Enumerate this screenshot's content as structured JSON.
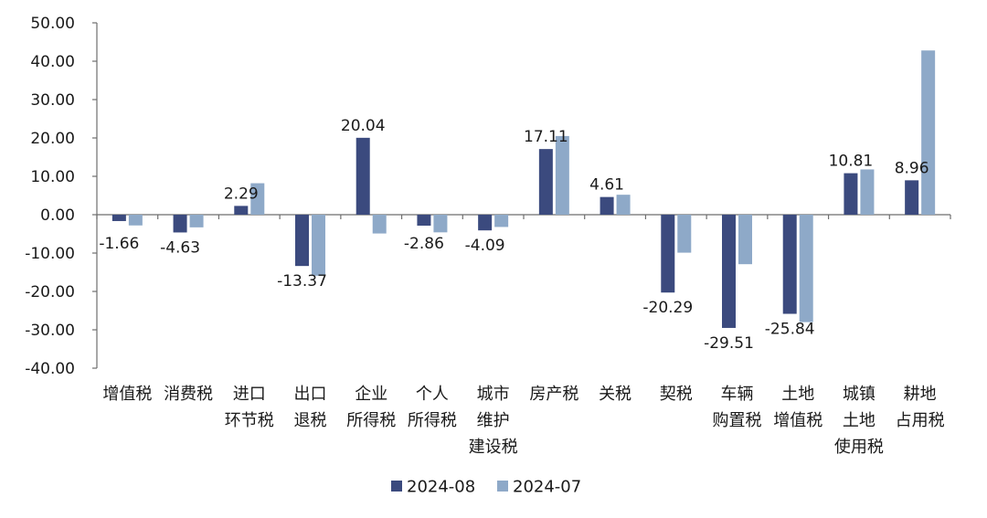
{
  "chart_data": {
    "type": "bar",
    "title": "",
    "xlabel": "",
    "ylabel": "",
    "ylim": [
      -40,
      50
    ],
    "yticks": [
      "50.00",
      "40.00",
      "30.00",
      "20.00",
      "10.00",
      "0.00",
      "-10.00",
      "-20.00",
      "-30.00",
      "-40.00"
    ],
    "grid": false,
    "legend_position": "bottom-center",
    "categories": [
      [
        "增值税"
      ],
      [
        "消费税"
      ],
      [
        "进口",
        "环节税"
      ],
      [
        "出口",
        "退税"
      ],
      [
        "企业",
        "所得税"
      ],
      [
        "个人",
        "所得税"
      ],
      [
        "城市",
        "维护",
        "建设税"
      ],
      [
        "房产税"
      ],
      [
        "关税"
      ],
      [
        "契税"
      ],
      [
        "车辆",
        "购置税"
      ],
      [
        "土地",
        "增值税"
      ],
      [
        "城镇",
        "土地",
        "使用税"
      ],
      [
        "耕地",
        "占用税"
      ]
    ],
    "series": [
      {
        "name": "2024-08",
        "color": "#3b4a7e",
        "values": [
          -1.66,
          -4.63,
          2.29,
          -13.37,
          20.04,
          -2.86,
          -4.09,
          17.11,
          4.61,
          -20.29,
          -29.51,
          -25.84,
          10.81,
          8.96
        ],
        "labels": [
          "-1.66",
          "-4.63",
          "2.29",
          "-13.37",
          "20.04",
          "-2.86",
          "-4.09",
          "17.11",
          "4.61",
          "-20.29",
          "-29.51",
          "-25.84",
          "10.81",
          "8.96"
        ]
      },
      {
        "name": "2024-07",
        "color": "#8ea9c8",
        "values": [
          -2.8,
          -3.3,
          8.2,
          -15.9,
          -4.9,
          -4.6,
          -3.2,
          20.5,
          5.2,
          -9.9,
          -12.9,
          -28.0,
          11.8,
          42.8
        ]
      }
    ]
  }
}
